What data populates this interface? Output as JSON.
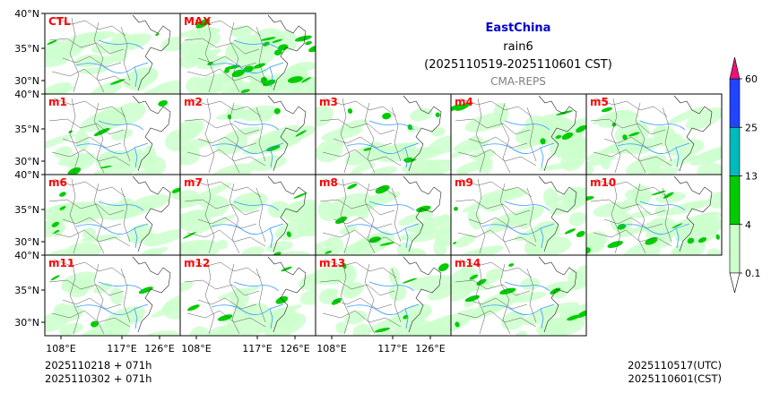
{
  "title": {
    "region": "EastChina",
    "variable": "rain6",
    "period": "(2025110519-2025110601 CST)",
    "source": "CMA-REPS",
    "region_color": "#0000cc",
    "source_color": "#808080"
  },
  "panels": [
    {
      "label": "CTL",
      "coverage": 0.3,
      "heavy": 0.02
    },
    {
      "label": "MAX",
      "coverage": 0.7,
      "heavy": 0.3
    },
    {
      "label": "m1",
      "coverage": 0.3,
      "heavy": 0.05
    },
    {
      "label": "m2",
      "coverage": 0.25,
      "heavy": 0.03
    },
    {
      "label": "m3",
      "coverage": 0.4,
      "heavy": 0.08
    },
    {
      "label": "m4",
      "coverage": 0.45,
      "heavy": 0.1
    },
    {
      "label": "m5",
      "coverage": 0.4,
      "heavy": 0.03
    },
    {
      "label": "m6",
      "coverage": 0.3,
      "heavy": 0.05
    },
    {
      "label": "m7",
      "coverage": 0.35,
      "heavy": 0.04
    },
    {
      "label": "m8",
      "coverage": 0.4,
      "heavy": 0.08
    },
    {
      "label": "m9",
      "coverage": 0.3,
      "heavy": 0.03
    },
    {
      "label": "m10",
      "coverage": 0.55,
      "heavy": 0.15
    },
    {
      "label": "m11",
      "coverage": 0.25,
      "heavy": 0.02
    },
    {
      "label": "m12",
      "coverage": 0.25,
      "heavy": 0.04
    },
    {
      "label": "m13",
      "coverage": 0.35,
      "heavy": 0.06
    },
    {
      "label": "m14",
      "coverage": 0.45,
      "heavy": 0.12
    }
  ],
  "axes": {
    "lat_labels": [
      "40°N",
      "35°N",
      "30°N"
    ],
    "lon_labels": [
      "108°E",
      "117°E",
      "126°E"
    ]
  },
  "colorbar": {
    "levels": [
      "0.1",
      "4",
      "13",
      "25",
      "60"
    ],
    "colors": [
      "#ccffcc",
      "#00cc00",
      "#00bbbb",
      "#2244ff",
      "#ee1177"
    ]
  },
  "footer": {
    "left_line1": "2025110218  +  071h",
    "left_line2": "2025110302  +  071h",
    "right_line1": "2025110517(UTC)",
    "right_line2": "2025110601(CST)"
  },
  "colors": {
    "light_rain": "#ccffcc",
    "moderate_rain": "#00cc00",
    "river": "#3399ff",
    "panel_label": "#ff0000"
  }
}
